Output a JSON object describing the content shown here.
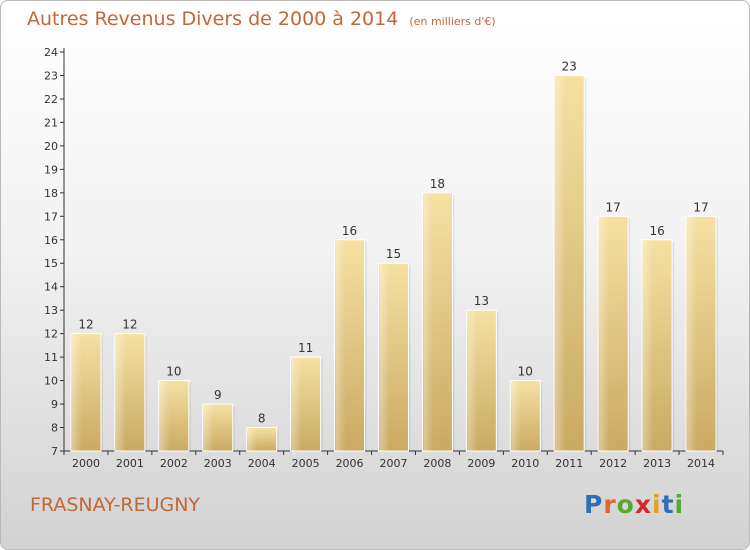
{
  "header": {
    "title": "Autres Revenus Divers de 2000 à 2014",
    "unit": "(en milliers d'€)"
  },
  "footer": {
    "commune": "FRASNAY-REUGNY"
  },
  "logo": {
    "text": "Proxiti",
    "letters": [
      "P",
      "r",
      "o",
      "x",
      "i",
      "t",
      "i"
    ],
    "letter_colors": [
      "#2f6db5",
      "#e1662a",
      "#55a834",
      "#d8262f",
      "#e1a21f",
      "#2f6db5",
      "#55a834"
    ]
  },
  "chart_data": {
    "type": "bar",
    "categories": [
      "2000",
      "2001",
      "2002",
      "2003",
      "2004",
      "2005",
      "2006",
      "2007",
      "2008",
      "2009",
      "2010",
      "2011",
      "2012",
      "2013",
      "2014"
    ],
    "values": [
      12,
      12,
      10,
      9,
      8,
      11,
      16,
      15,
      18,
      13,
      10,
      23,
      17,
      16,
      17
    ],
    "ylim": [
      7,
      24
    ],
    "yticks": [
      7,
      8,
      9,
      10,
      11,
      12,
      13,
      14,
      15,
      16,
      17,
      18,
      19,
      20,
      21,
      22,
      23,
      24
    ],
    "grid": false,
    "bar_color": "#e6cd86",
    "data_labels": true
  }
}
